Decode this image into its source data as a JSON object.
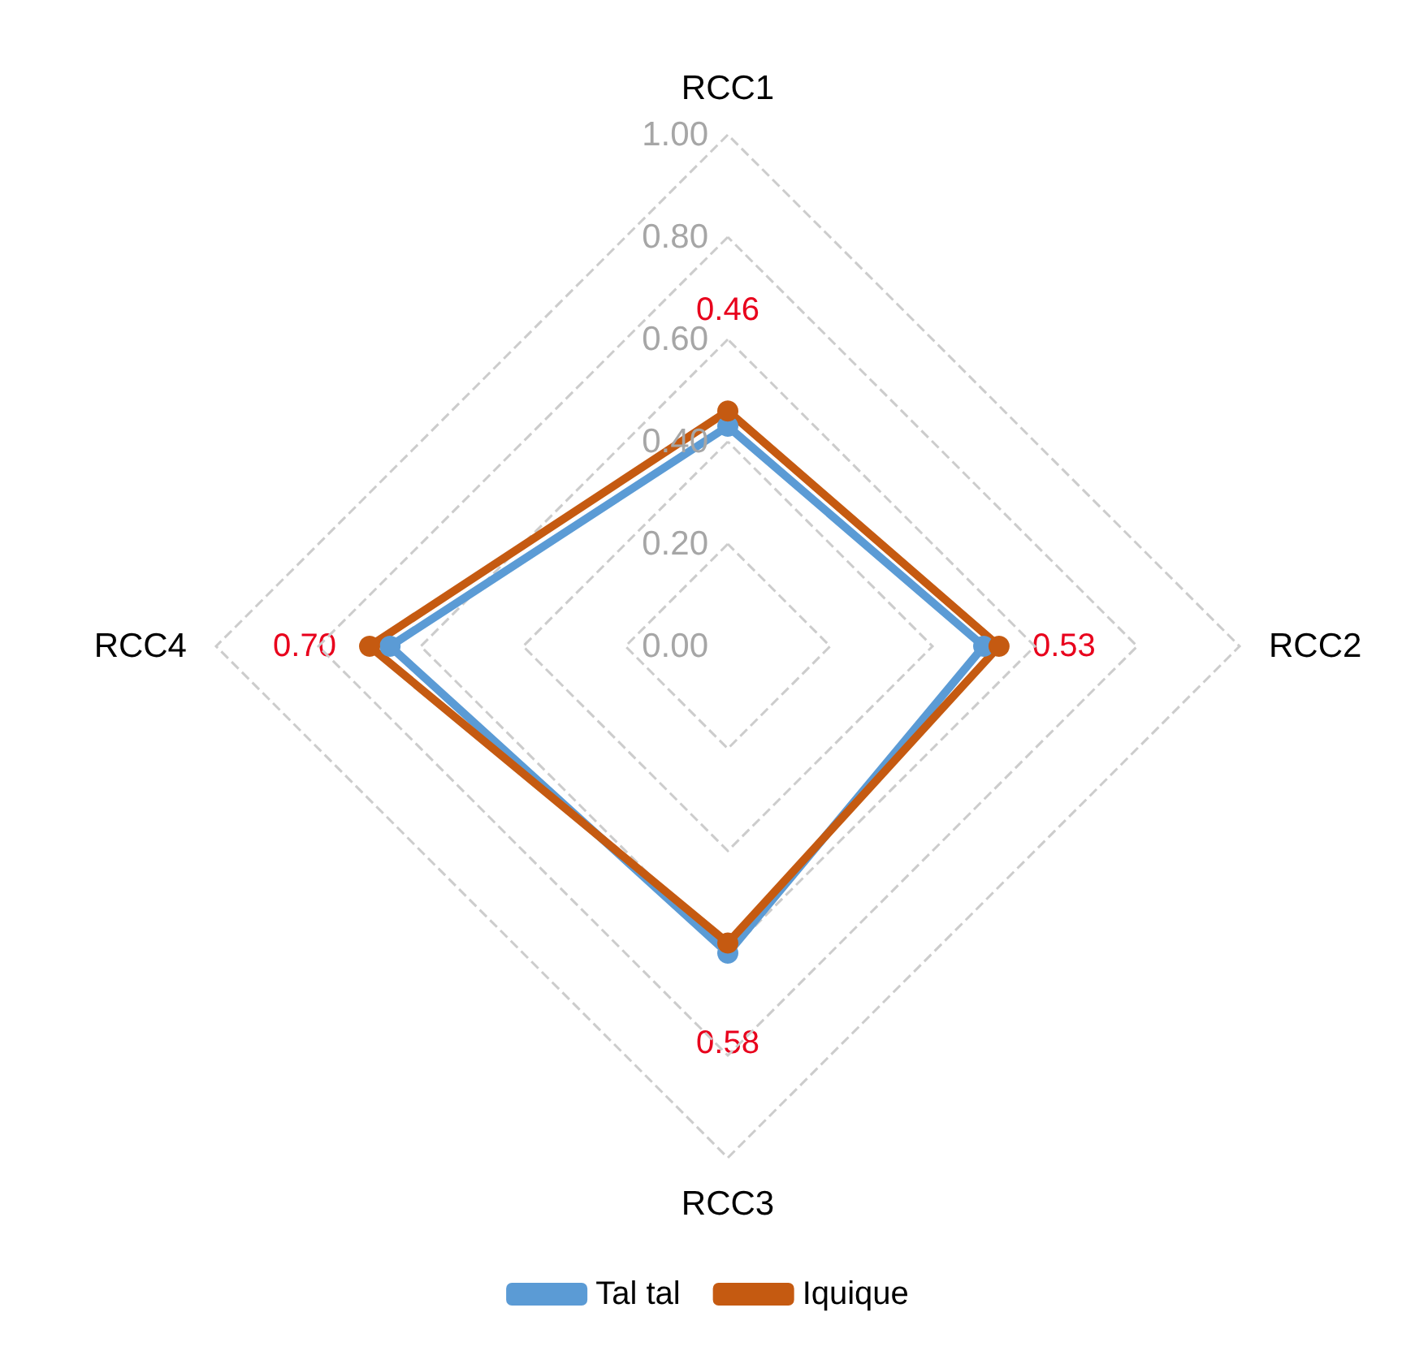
{
  "chart_data": {
    "type": "radar",
    "categories": [
      "RCC1",
      "RCC2",
      "RCC3",
      "RCC4"
    ],
    "series": [
      {
        "name": "Tal tal",
        "color": "#5b9bd5",
        "values": [
          0.43,
          0.5,
          0.6,
          0.66
        ]
      },
      {
        "name": "Iquique",
        "color": "#c55a11",
        "values": [
          0.46,
          0.53,
          0.58,
          0.7
        ],
        "value_labels": [
          "0.46",
          "0.53",
          "0.58",
          "0.70"
        ]
      }
    ],
    "ylim": [
      0,
      1
    ],
    "yticks": [
      {
        "value": 0,
        "label": "0.00"
      },
      {
        "value": 0.2,
        "label": "0.20"
      },
      {
        "value": 0.4,
        "label": "0.40"
      },
      {
        "value": 0.6,
        "label": "0.60"
      },
      {
        "value": 0.8,
        "label": "0.80"
      },
      {
        "value": 1,
        "label": "1.00"
      }
    ],
    "grid": true,
    "legend": "bottom",
    "marker": "circle",
    "line_style": "solid"
  }
}
